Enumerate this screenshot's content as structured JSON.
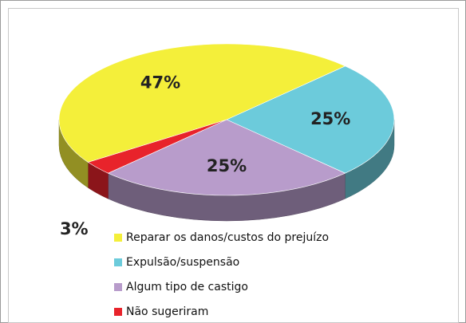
{
  "chart_data": {
    "type": "pie3d",
    "categories": [
      "Reparar os danos/custos do prejuízo",
      "Expulsão/suspensão",
      "Algum tipo de castigo",
      "Não sugeriram"
    ],
    "values": [
      47,
      25,
      25,
      3
    ],
    "value_labels": [
      "47%",
      "25%",
      "25%",
      "3%"
    ],
    "colors": [
      "#f4ef3a",
      "#6ccbdb",
      "#b89ccb",
      "#e8232b"
    ],
    "legend": "bottom"
  }
}
